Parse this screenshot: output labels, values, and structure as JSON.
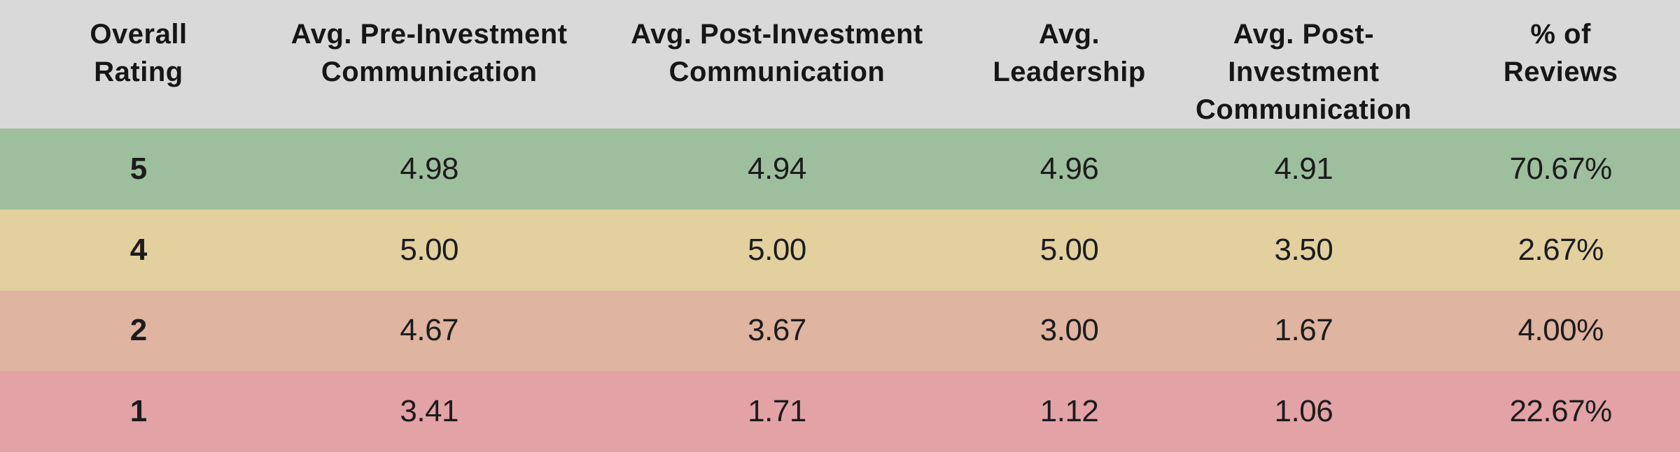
{
  "colors": {
    "header_bg": "#d9d9d9",
    "text": "#1a1a1a"
  },
  "table": {
    "headers": [
      "Overall\nRating",
      "Avg. Pre-Investment\nCommunication",
      "Avg. Post-Investment\nCommunication",
      "Avg.\nLeadership",
      "Avg. Post-Investment\nCommunication",
      "% of\nReviews"
    ],
    "rows": [
      {
        "rating": "5",
        "color": "#9ebf9d",
        "values": [
          "4.98",
          "4.94",
          "4.96",
          "4.91",
          "70.67%"
        ]
      },
      {
        "rating": "4",
        "color": "#e2d09f",
        "values": [
          "5.00",
          "5.00",
          "5.00",
          "3.50",
          "2.67%"
        ]
      },
      {
        "rating": "2",
        "color": "#dfb4a0",
        "values": [
          "4.67",
          "3.67",
          "3.00",
          "1.67",
          "4.00%"
        ]
      },
      {
        "rating": "1",
        "color": "#e2a2a6",
        "values": [
          "3.41",
          "1.71",
          "1.12",
          "1.06",
          "22.67%"
        ]
      }
    ]
  },
  "chart_data": {
    "type": "table",
    "title": "",
    "columns": [
      "Overall Rating",
      "Avg. Pre-Investment Communication",
      "Avg. Post-Investment Communication",
      "Avg. Leadership",
      "Avg. Post-Investment Communication",
      "% of Reviews"
    ],
    "rows": [
      [
        "5",
        "4.98",
        "4.94",
        "4.96",
        "4.91",
        "70.67%"
      ],
      [
        "4",
        "5.00",
        "5.00",
        "5.00",
        "3.50",
        "2.67%"
      ],
      [
        "2",
        "4.67",
        "3.67",
        "3.00",
        "1.67",
        "4.00%"
      ],
      [
        "1",
        "3.41",
        "1.71",
        "1.12",
        "1.06",
        "22.67%"
      ]
    ],
    "row_status_colors": [
      "#9ebf9d",
      "#e2d09f",
      "#dfb4a0",
      "#e2a2a6"
    ],
    "layout_hints": {
      "header_background": "#d9d9d9",
      "row_color_meaning": "rating heat scale: green=high, yellow=mid, orange=low, red=lowest"
    }
  }
}
